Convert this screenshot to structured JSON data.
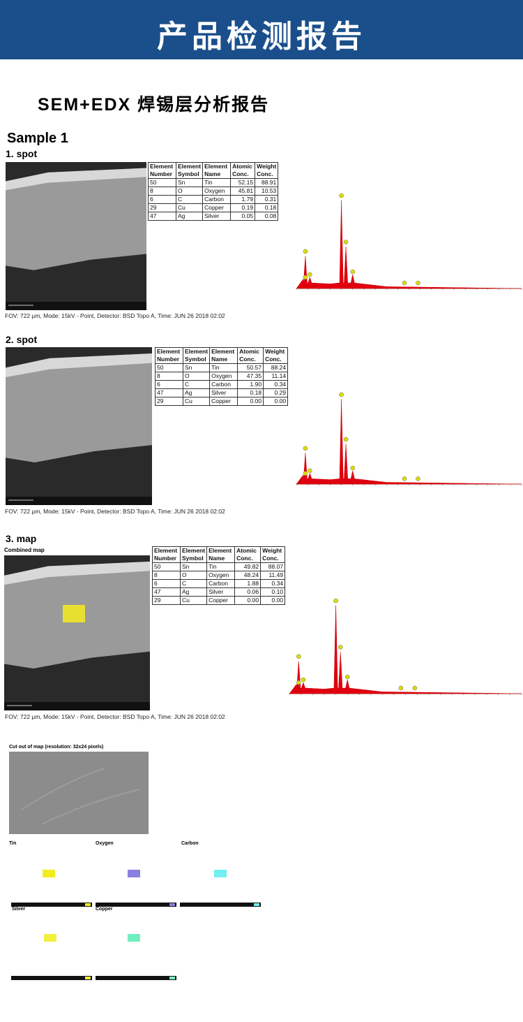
{
  "header": {
    "title": "产品检测报告"
  },
  "subtitle": "SEM+EDX 焊锡层分析报告",
  "sample": "Sample 1",
  "sections": [
    {
      "heading": "1. spot",
      "table": {
        "header": [
          "Element Number",
          "Element Symbol",
          "Element Name",
          "Atomic Conc.",
          "Weight Conc."
        ],
        "rows": [
          [
            "50",
            "Sn",
            "Tin",
            "52.15",
            "88.91"
          ],
          [
            "8",
            "O",
            "Oxygen",
            "45.81",
            "10.53"
          ],
          [
            "6",
            "C",
            "Carbon",
            "1.79",
            "0.31"
          ],
          [
            "29",
            "Cu",
            "Copper",
            "0.19",
            "0.18"
          ],
          [
            "47",
            "Ag",
            "Silver",
            "0.05",
            "0.08"
          ]
        ]
      },
      "caption": "FOV: 722 µm, Mode: 15kV - Point, Detector: BSD Topo A, Time: JUN 26 2018 02:02"
    },
    {
      "heading": "2. spot",
      "table": {
        "header": [
          "Element Number",
          "Element Symbol",
          "Element Name",
          "Atomic Conc.",
          "Weight Conc."
        ],
        "rows": [
          [
            "50",
            "Sn",
            "Tin",
            "50.57",
            "88.24"
          ],
          [
            "8",
            "O",
            "Oxygen",
            "47.35",
            "11.14"
          ],
          [
            "6",
            "C",
            "Carbon",
            "1.90",
            "0.34"
          ],
          [
            "47",
            "Ag",
            "Silver",
            "0.18",
            "0.29"
          ],
          [
            "29",
            "Cu",
            "Copper",
            "0.00",
            "0.00"
          ]
        ]
      },
      "caption": "FOV: 722 µm, Mode: 15kV - Point, Detector: BSD Topo A, Time: JUN 26 2018 02:02"
    },
    {
      "heading": "3. map",
      "sublabel": "Combined map",
      "table": {
        "header": [
          "Element Number",
          "Element Symbol",
          "Element Name",
          "Atomic Conc.",
          "Weight Conc."
        ],
        "rows": [
          [
            "50",
            "Sn",
            "Tin",
            "49.82",
            "88.07"
          ],
          [
            "8",
            "O",
            "Oxygen",
            "48.24",
            "11.49"
          ],
          [
            "6",
            "C",
            "Carbon",
            "1.88",
            "0.34"
          ],
          [
            "47",
            "Ag",
            "Silver",
            "0.06",
            "0.10"
          ],
          [
            "29",
            "Cu",
            "Copper",
            "0.00",
            "0.00"
          ]
        ]
      },
      "caption": "FOV: 722 µm, Mode: 15kV - Point, Detector: BSD Topo A, Time: JUN 26 2018 02:02"
    }
  ],
  "cutout": {
    "label": "Cut out of map (resolution: 32x24 pixels)",
    "maps": [
      "Tin",
      "Oxygen",
      "Carbon",
      "Silver",
      "Copper"
    ]
  }
}
